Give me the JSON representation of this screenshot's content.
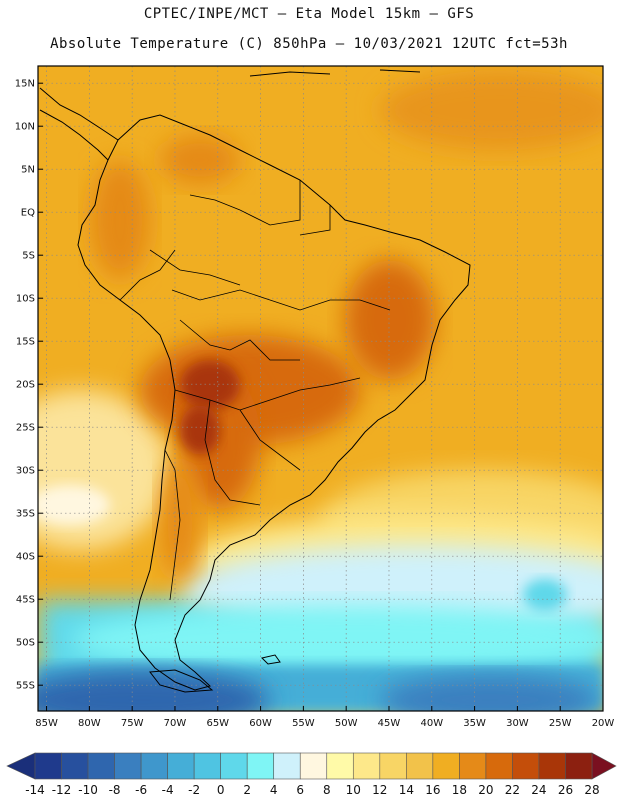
{
  "header": {
    "line1": "CPTEC/INPE/MCT –  Eta Model 15km – GFS",
    "line2": "Absolute Temperature (C) 850hPa – 10/03/2021 12UTC fct=53h"
  },
  "map": {
    "lat_range": [
      -58,
      17
    ],
    "lon_range": [
      -86,
      -20
    ],
    "lat_labels": [
      "15N",
      "10N",
      "5N",
      "EQ",
      "5S",
      "10S",
      "15S",
      "20S",
      "25S",
      "30S",
      "35S",
      "40S",
      "45S",
      "50S",
      "55S"
    ],
    "lat_values": [
      15,
      10,
      5,
      0,
      -5,
      -10,
      -15,
      -20,
      -25,
      -30,
      -35,
      -40,
      -45,
      -50,
      -55
    ],
    "lon_labels": [
      "85W",
      "80W",
      "75W",
      "70W",
      "65W",
      "60W",
      "55W",
      "50W",
      "45W",
      "40W",
      "35W",
      "30W",
      "25W",
      "20W"
    ],
    "lon_values": [
      -85,
      -80,
      -75,
      -70,
      -65,
      -60,
      -55,
      -50,
      -45,
      -40,
      -35,
      -30,
      -25,
      -20
    ]
  },
  "colorbar": {
    "labels": [
      "-14",
      "-12",
      "-10",
      "-8",
      "-6",
      "-4",
      "-2",
      "0",
      "2",
      "4",
      "6",
      "8",
      "10",
      "12",
      "14",
      "16",
      "18",
      "20",
      "22",
      "24",
      "26",
      "28"
    ],
    "colors": [
      "#1f3a8c",
      "#27509e",
      "#2f66ae",
      "#3a7fbf",
      "#3f97cc",
      "#45aed7",
      "#4fc4e2",
      "#5fd8ea",
      "#7ff5f5",
      "#cff1fb",
      "#fff7e0",
      "#fffaa8",
      "#fde88a",
      "#f8d565",
      "#f2c24a",
      "#f0ae22",
      "#e58a18",
      "#d76a0c",
      "#c44e0a",
      "#a93608",
      "#8c2010"
    ],
    "left_tip_color": "#1a2f7a",
    "right_tip_color": "#7a1020"
  }
}
